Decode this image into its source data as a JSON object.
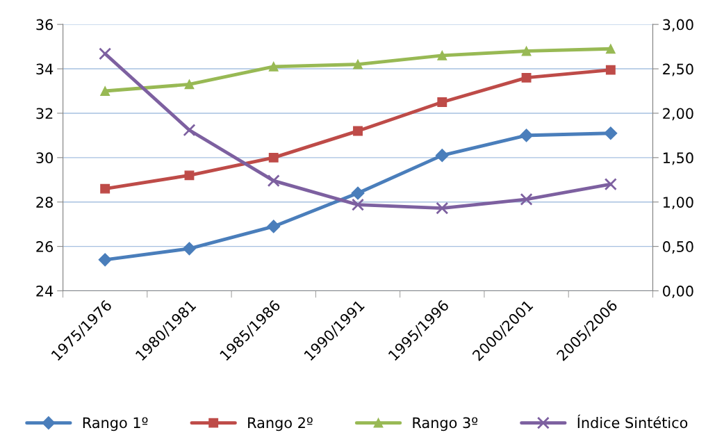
{
  "chart_data": {
    "type": "line",
    "categories": [
      "1975/1976",
      "1980/1981",
      "1985/1986",
      "1990/1991",
      "1995/1996",
      "2000/2001",
      "2005/2006"
    ],
    "series": [
      {
        "name": "Rango 1º",
        "color": "#4a7ebb",
        "marker": "diamond",
        "values": [
          25.4,
          25.9,
          26.9,
          28.4,
          30.1,
          31.0,
          31.1
        ]
      },
      {
        "name": "Rango 2º",
        "color": "#be4b48",
        "marker": "square",
        "values": [
          28.6,
          29.2,
          30.0,
          31.2,
          32.5,
          33.6,
          33.95
        ]
      },
      {
        "name": "Rango 3º",
        "color": "#98b954",
        "marker": "triangle",
        "values": [
          33.0,
          33.3,
          34.1,
          34.2,
          34.6,
          34.8,
          34.9
        ]
      },
      {
        "name": "Índice Sintético",
        "color": "#7d60a0",
        "marker": "cross",
        "axis": "y2",
        "values": [
          2.67,
          1.81,
          1.24,
          0.97,
          0.93,
          1.03,
          1.2
        ]
      }
    ],
    "ylim": [
      24,
      36
    ],
    "yticks": [
      24,
      26,
      28,
      30,
      32,
      34,
      36
    ],
    "y2lim": [
      0,
      3
    ],
    "y2ticks": [
      {
        "value": 0,
        "label": "0,00"
      },
      {
        "value": 0.5,
        "label": "0,50"
      },
      {
        "value": 1,
        "label": "1,00"
      },
      {
        "value": 1.5,
        "label": "1,50"
      },
      {
        "value": 2,
        "label": "2,00"
      },
      {
        "value": 2.5,
        "label": "2,50"
      },
      {
        "value": 3,
        "label": "3,00"
      }
    ],
    "grid": "y",
    "legend": "bottom",
    "line_style": "solid"
  }
}
